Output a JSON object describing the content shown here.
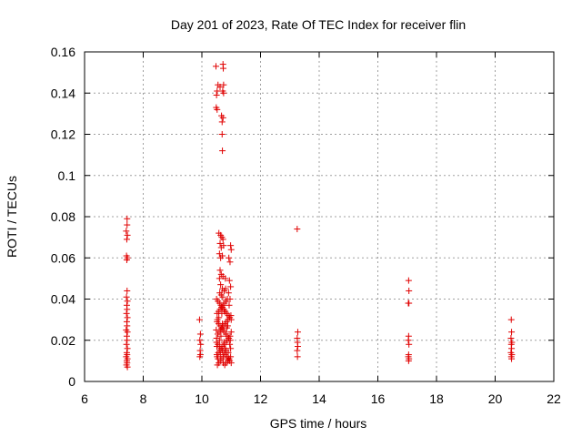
{
  "chart_data": {
    "type": "scatter",
    "title": "Day 201 of 2023, Rate Of TEC Index for receiver flin",
    "xlabel": "GPS time / hours",
    "ylabel": "ROTI / TECUs",
    "xlim": [
      6,
      22
    ],
    "ylim": [
      0,
      0.16
    ],
    "xticks": [
      "6",
      "8",
      "10",
      "12",
      "14",
      "16",
      "18",
      "20",
      "22"
    ],
    "yticks": [
      "0",
      "0.02",
      "0.04",
      "0.06",
      "0.08",
      "0.1",
      "0.12",
      "0.14",
      "0.16"
    ],
    "grid": true,
    "marker_color": "#e00000",
    "series": [
      {
        "points": [
          [
            7.45,
            0.079
          ],
          [
            7.45,
            0.076
          ],
          [
            7.42,
            0.073
          ],
          [
            7.46,
            0.071
          ],
          [
            7.44,
            0.069
          ],
          [
            7.43,
            0.061
          ],
          [
            7.46,
            0.06
          ],
          [
            7.44,
            0.059
          ],
          [
            7.45,
            0.044
          ],
          [
            7.43,
            0.041
          ],
          [
            7.46,
            0.039
          ],
          [
            7.44,
            0.037
          ],
          [
            7.45,
            0.035
          ],
          [
            7.43,
            0.033
          ],
          [
            7.46,
            0.031
          ],
          [
            7.44,
            0.029
          ],
          [
            7.45,
            0.027
          ],
          [
            7.42,
            0.025
          ],
          [
            7.46,
            0.024
          ],
          [
            7.44,
            0.022
          ],
          [
            7.45,
            0.02
          ],
          [
            7.43,
            0.018
          ],
          [
            7.46,
            0.016
          ],
          [
            7.44,
            0.014
          ],
          [
            7.45,
            0.013
          ],
          [
            7.42,
            0.012
          ],
          [
            7.46,
            0.011
          ],
          [
            7.44,
            0.01
          ],
          [
            7.45,
            0.009
          ],
          [
            7.43,
            0.008
          ],
          [
            7.46,
            0.007
          ],
          [
            9.92,
            0.03
          ],
          [
            9.95,
            0.023
          ],
          [
            9.93,
            0.02
          ],
          [
            9.96,
            0.018
          ],
          [
            9.94,
            0.015
          ],
          [
            9.95,
            0.013
          ],
          [
            9.93,
            0.012
          ],
          [
            10.48,
            0.153
          ],
          [
            10.72,
            0.154
          ],
          [
            10.73,
            0.152
          ],
          [
            10.55,
            0.144
          ],
          [
            10.62,
            0.143
          ],
          [
            10.74,
            0.144
          ],
          [
            10.52,
            0.141
          ],
          [
            10.71,
            0.141
          ],
          [
            10.74,
            0.14
          ],
          [
            10.5,
            0.139
          ],
          [
            10.49,
            0.133
          ],
          [
            10.52,
            0.132
          ],
          [
            10.67,
            0.129
          ],
          [
            10.72,
            0.128
          ],
          [
            10.69,
            0.126
          ],
          [
            10.69,
            0.12
          ],
          [
            10.7,
            0.112
          ],
          [
            10.58,
            0.072
          ],
          [
            10.64,
            0.071
          ],
          [
            10.68,
            0.07
          ],
          [
            10.72,
            0.069
          ],
          [
            10.62,
            0.067
          ],
          [
            10.74,
            0.066
          ],
          [
            10.66,
            0.065
          ],
          [
            10.98,
            0.066
          ],
          [
            11.0,
            0.064
          ],
          [
            10.6,
            0.062
          ],
          [
            10.7,
            0.061
          ],
          [
            10.64,
            0.06
          ],
          [
            10.92,
            0.06
          ],
          [
            10.96,
            0.058
          ],
          [
            10.62,
            0.054
          ],
          [
            10.66,
            0.052
          ],
          [
            10.72,
            0.051
          ],
          [
            10.6,
            0.05
          ],
          [
            10.8,
            0.05
          ],
          [
            10.94,
            0.049
          ],
          [
            10.98,
            0.046
          ],
          [
            10.64,
            0.047
          ],
          [
            10.7,
            0.045
          ],
          [
            10.76,
            0.044
          ],
          [
            10.5,
            0.04
          ],
          [
            10.55,
            0.039
          ],
          [
            10.6,
            0.038
          ],
          [
            10.65,
            0.037
          ],
          [
            10.7,
            0.036
          ],
          [
            10.75,
            0.035
          ],
          [
            10.8,
            0.034
          ],
          [
            10.85,
            0.033
          ],
          [
            10.9,
            0.032
          ],
          [
            10.95,
            0.031
          ],
          [
            11.0,
            0.03
          ],
          [
            10.52,
            0.029
          ],
          [
            10.57,
            0.028
          ],
          [
            10.62,
            0.027
          ],
          [
            10.67,
            0.026
          ],
          [
            10.72,
            0.025
          ],
          [
            10.77,
            0.024
          ],
          [
            10.82,
            0.023
          ],
          [
            10.87,
            0.022
          ],
          [
            10.92,
            0.021
          ],
          [
            10.97,
            0.02
          ],
          [
            10.5,
            0.019
          ],
          [
            10.55,
            0.018
          ],
          [
            10.6,
            0.017
          ],
          [
            10.65,
            0.016
          ],
          [
            10.7,
            0.015
          ],
          [
            10.75,
            0.014
          ],
          [
            10.8,
            0.013
          ],
          [
            10.85,
            0.012
          ],
          [
            10.9,
            0.011
          ],
          [
            10.95,
            0.01
          ],
          [
            11.0,
            0.009
          ],
          [
            10.53,
            0.008
          ],
          [
            10.58,
            0.009
          ],
          [
            10.63,
            0.01
          ],
          [
            10.68,
            0.011
          ],
          [
            10.73,
            0.012
          ],
          [
            10.78,
            0.008
          ],
          [
            10.83,
            0.009
          ],
          [
            10.88,
            0.01
          ],
          [
            10.93,
            0.011
          ],
          [
            10.98,
            0.012
          ],
          [
            10.51,
            0.013
          ],
          [
            10.56,
            0.014
          ],
          [
            10.61,
            0.015
          ],
          [
            10.66,
            0.016
          ],
          [
            10.71,
            0.017
          ],
          [
            10.76,
            0.018
          ],
          [
            10.81,
            0.019
          ],
          [
            10.86,
            0.02
          ],
          [
            10.91,
            0.021
          ],
          [
            10.96,
            0.022
          ],
          [
            10.54,
            0.023
          ],
          [
            10.59,
            0.024
          ],
          [
            10.64,
            0.025
          ],
          [
            10.69,
            0.026
          ],
          [
            10.74,
            0.027
          ],
          [
            10.79,
            0.028
          ],
          [
            10.84,
            0.029
          ],
          [
            10.89,
            0.03
          ],
          [
            10.94,
            0.031
          ],
          [
            10.99,
            0.032
          ],
          [
            10.52,
            0.033
          ],
          [
            10.57,
            0.034
          ],
          [
            10.62,
            0.035
          ],
          [
            10.67,
            0.036
          ],
          [
            10.72,
            0.037
          ],
          [
            10.77,
            0.038
          ],
          [
            10.82,
            0.039
          ],
          [
            10.87,
            0.04
          ],
          [
            10.49,
            0.025
          ],
          [
            10.5,
            0.021
          ],
          [
            10.51,
            0.017
          ],
          [
            10.52,
            0.012
          ],
          [
            10.53,
            0.03
          ],
          [
            10.6,
            0.02
          ],
          [
            10.65,
            0.022
          ],
          [
            10.7,
            0.028
          ],
          [
            10.75,
            0.019
          ],
          [
            10.8,
            0.016
          ],
          [
            10.85,
            0.026
          ],
          [
            10.9,
            0.014
          ],
          [
            10.95,
            0.018
          ],
          [
            11.0,
            0.024
          ],
          [
            10.58,
            0.031
          ],
          [
            10.63,
            0.013
          ],
          [
            10.68,
            0.033
          ],
          [
            10.73,
            0.009
          ],
          [
            10.78,
            0.034
          ],
          [
            10.83,
            0.015
          ],
          [
            10.88,
            0.027
          ],
          [
            10.93,
            0.037
          ],
          [
            10.98,
            0.016
          ],
          [
            10.55,
            0.011
          ],
          [
            10.66,
            0.042
          ],
          [
            10.71,
            0.041
          ],
          [
            10.61,
            0.043
          ],
          [
            10.81,
            0.045
          ],
          [
            10.91,
            0.043
          ],
          [
            10.96,
            0.04
          ],
          [
            13.25,
            0.074
          ],
          [
            13.27,
            0.024
          ],
          [
            13.25,
            0.021
          ],
          [
            13.26,
            0.019
          ],
          [
            13.27,
            0.017
          ],
          [
            13.25,
            0.015
          ],
          [
            13.26,
            0.012
          ],
          [
            17.05,
            0.049
          ],
          [
            17.06,
            0.044
          ],
          [
            17.04,
            0.038
          ],
          [
            17.06,
            0.038
          ],
          [
            17.05,
            0.022
          ],
          [
            17.04,
            0.02
          ],
          [
            17.06,
            0.018
          ],
          [
            17.05,
            0.013
          ],
          [
            17.04,
            0.012
          ],
          [
            17.06,
            0.011
          ],
          [
            17.05,
            0.01
          ],
          [
            20.55,
            0.03
          ],
          [
            20.56,
            0.024
          ],
          [
            20.54,
            0.021
          ],
          [
            20.57,
            0.019
          ],
          [
            20.55,
            0.018
          ],
          [
            20.56,
            0.016
          ],
          [
            20.54,
            0.014
          ],
          [
            20.57,
            0.013
          ],
          [
            20.55,
            0.012
          ],
          [
            20.56,
            0.011
          ]
        ]
      }
    ]
  }
}
